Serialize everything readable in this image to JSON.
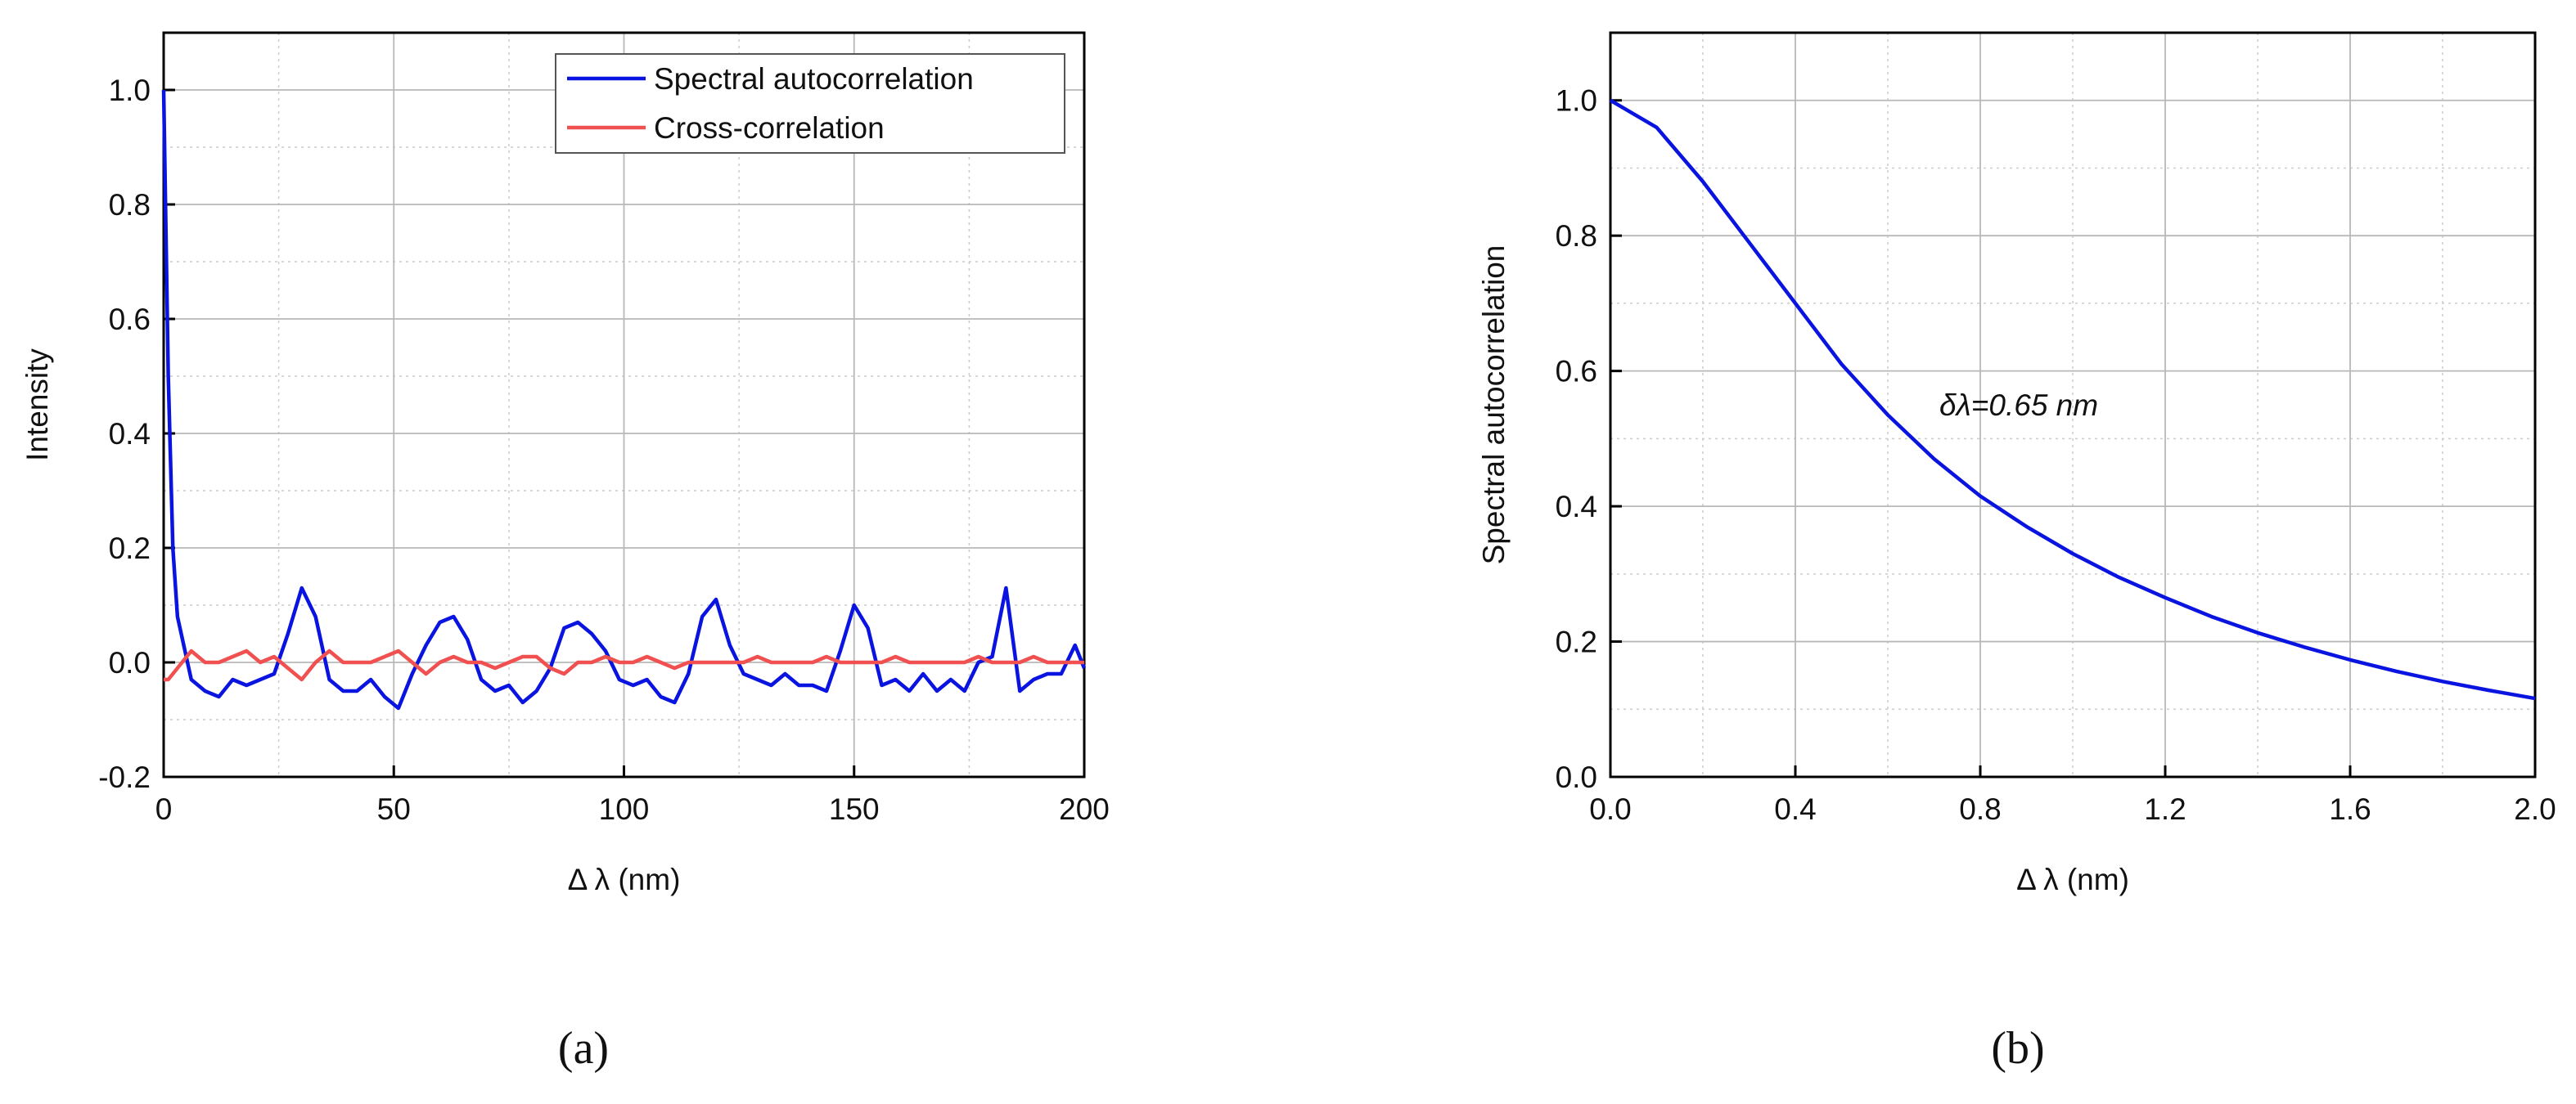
{
  "chart_data": [
    {
      "type": "line",
      "panel_label": "(a)",
      "xlabel": "Δ λ (nm)",
      "ylabel": "Intensity",
      "xlim": [
        0,
        200
      ],
      "ylim": [
        -0.2,
        1.1
      ],
      "xticks": [
        0,
        50,
        100,
        150,
        200
      ],
      "yticks": [
        -0.2,
        {
          "value": 0,
          "label": "0.0"
        },
        0.2,
        0.4,
        0.6,
        0.8,
        {
          "value": 1,
          "label": "1.0"
        }
      ],
      "grid": true,
      "minor_grid": true,
      "legend": "upper right",
      "x": [
        0,
        1,
        2,
        3,
        6,
        9,
        12,
        15,
        18,
        21,
        24,
        27,
        30,
        33,
        36,
        39,
        42,
        45,
        48,
        51,
        54,
        57,
        60,
        63,
        66,
        69,
        72,
        75,
        78,
        81,
        84,
        87,
        90,
        93,
        96,
        99,
        102,
        105,
        108,
        111,
        114,
        117,
        120,
        123,
        126,
        129,
        132,
        135,
        138,
        141,
        144,
        147,
        150,
        153,
        156,
        159,
        162,
        165,
        168,
        171,
        174,
        177,
        180,
        183,
        186,
        189,
        192,
        195,
        198,
        200
      ],
      "series": [
        {
          "name": "Spectral autocorrelation",
          "color": "#0a14e0",
          "values": [
            1.0,
            0.5,
            0.2,
            0.08,
            -0.03,
            -0.05,
            -0.06,
            -0.03,
            -0.04,
            -0.03,
            -0.02,
            0.05,
            0.13,
            0.08,
            -0.03,
            -0.05,
            -0.05,
            -0.03,
            -0.06,
            -0.08,
            -0.02,
            0.03,
            0.07,
            0.08,
            0.04,
            -0.03,
            -0.05,
            -0.04,
            -0.07,
            -0.05,
            -0.01,
            0.06,
            0.07,
            0.05,
            0.02,
            -0.03,
            -0.04,
            -0.03,
            -0.06,
            -0.07,
            -0.02,
            0.08,
            0.11,
            0.03,
            -0.02,
            -0.03,
            -0.04,
            -0.02,
            -0.04,
            -0.04,
            -0.05,
            0.02,
            0.1,
            0.06,
            -0.04,
            -0.03,
            -0.05,
            -0.02,
            -0.05,
            -0.03,
            -0.05,
            0.0,
            0.01,
            0.13,
            -0.05,
            -0.03,
            -0.02,
            -0.02,
            0.03,
            -0.01
          ]
        },
        {
          "name": "Cross-correlation",
          "color": "#f05050",
          "values": [
            -0.03,
            -0.03,
            -0.02,
            -0.01,
            0.02,
            0.0,
            0.0,
            0.01,
            0.02,
            0.0,
            0.01,
            -0.01,
            -0.03,
            0.0,
            0.02,
            0.0,
            0.0,
            0.0,
            0.01,
            0.02,
            0.0,
            -0.02,
            0.0,
            0.01,
            0.0,
            0.0,
            -0.01,
            0.0,
            0.01,
            0.01,
            -0.01,
            -0.02,
            0.0,
            0.0,
            0.01,
            0.0,
            0.0,
            0.01,
            0.0,
            -0.01,
            0.0,
            0.0,
            0.0,
            0.0,
            0.0,
            0.01,
            0.0,
            0.0,
            0.0,
            0.0,
            0.01,
            0.0,
            0.0,
            0.0,
            0.0,
            0.01,
            0.0,
            0.0,
            0.0,
            0.0,
            0.0,
            0.01,
            0.0,
            0.0,
            0.0,
            0.01,
            0.0,
            0.0,
            0.0,
            0.0
          ]
        }
      ]
    },
    {
      "type": "line",
      "panel_label": "(b)",
      "xlabel": "Δ λ (nm)",
      "ylabel": "Spectral autocorrelation",
      "annotation": "δλ=0.65 nm",
      "xlim": [
        0,
        2
      ],
      "ylim": [
        0,
        1.1
      ],
      "xticks": [
        {
          "value": 0,
          "label": "0.0"
        },
        0.4,
        0.8,
        1.2,
        1.6,
        {
          "value": 2,
          "label": "2.0"
        }
      ],
      "yticks": [
        {
          "value": 0,
          "label": "0.0"
        },
        0.2,
        0.4,
        0.6,
        0.8,
        {
          "value": 1,
          "label": "1.0"
        }
      ],
      "grid": true,
      "minor_grid": true,
      "x": [
        0,
        0.1,
        0.2,
        0.3,
        0.4,
        0.5,
        0.6,
        0.7,
        0.8,
        0.9,
        1.0,
        1.1,
        1.2,
        1.3,
        1.4,
        1.5,
        1.6,
        1.7,
        1.8,
        1.9,
        2.0
      ],
      "series": [
        {
          "name": "Spectral autocorrelation",
          "color": "#0a14e0",
          "values": [
            1.0,
            0.96,
            0.88,
            0.79,
            0.7,
            0.61,
            0.535,
            0.47,
            0.415,
            0.37,
            0.33,
            0.295,
            0.265,
            0.237,
            0.213,
            0.192,
            0.173,
            0.156,
            0.141,
            0.128,
            0.116
          ]
        }
      ]
    }
  ]
}
